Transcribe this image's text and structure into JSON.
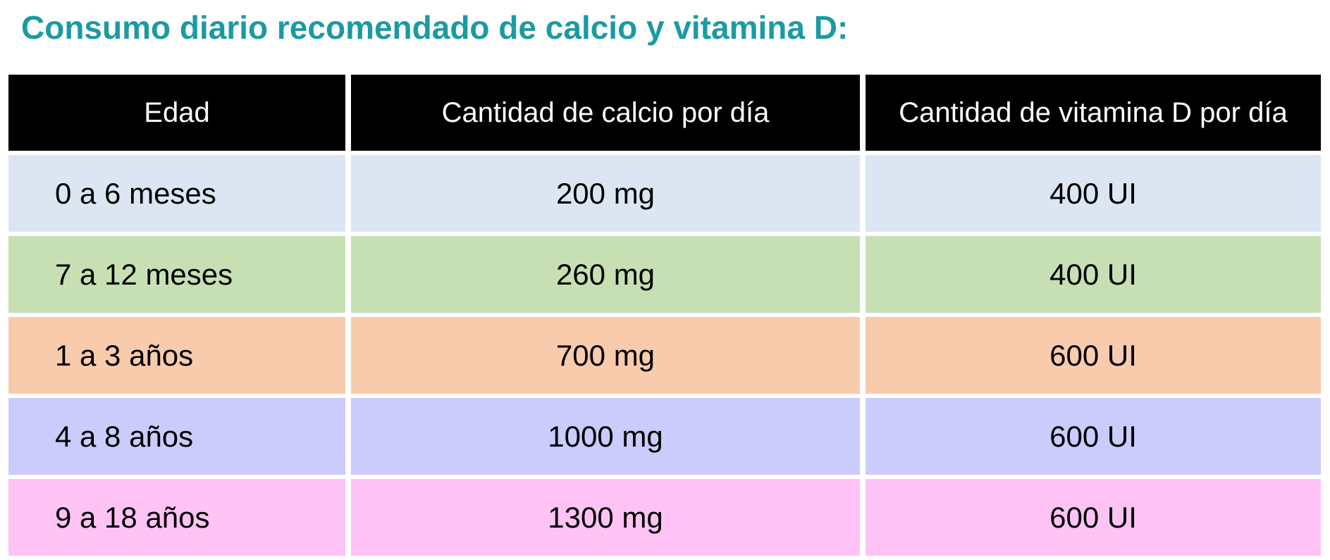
{
  "title": "Consumo diario recomendado de calcio y vitamina D:",
  "title_color": "#1b9aa3",
  "table": {
    "header_bg": "#000000",
    "header_text_color": "#ffffff",
    "columns": {
      "edad": "Edad",
      "calcio": "Cantidad de calcio por día",
      "vitamina_d": "Cantidad de vitamina D por día"
    },
    "rows": [
      {
        "edad": "0 a 6 meses",
        "calcio": "200 mg",
        "vitamina_d": "400 UI",
        "bg": "#dce6f2"
      },
      {
        "edad": "7 a 12 meses",
        "calcio": "260 mg",
        "vitamina_d": "400 UI",
        "bg": "#c6e0b4"
      },
      {
        "edad": "1 a 3 años",
        "calcio": "700 mg",
        "vitamina_d": "600 UI",
        "bg": "#f8cbad"
      },
      {
        "edad": "4 a 8 años",
        "calcio": "1000 mg",
        "vitamina_d": "600 UI",
        "bg": "#cbcbfc"
      },
      {
        "edad": "9 a 18 años",
        "calcio": "1300 mg",
        "vitamina_d": "600 UI",
        "bg": "#fec3f4"
      }
    ]
  }
}
